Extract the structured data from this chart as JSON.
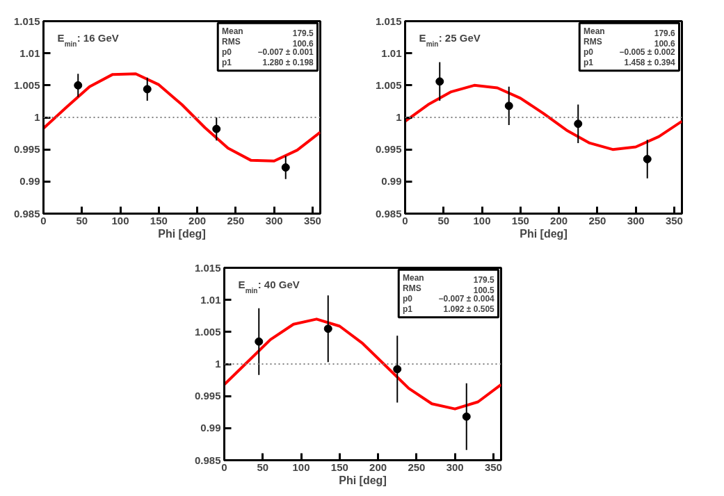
{
  "chart_data": [
    {
      "type": "scatter",
      "xlabel": "Phi [deg]",
      "xlim": [
        0,
        360
      ],
      "ylim": [
        0.985,
        1.015
      ],
      "xticks": [
        0,
        50,
        100,
        150,
        200,
        250,
        300,
        350
      ],
      "yticks": [
        0.985,
        0.99,
        0.995,
        1,
        1.005,
        1.01,
        1.015
      ],
      "grid": false,
      "annotations": [
        "E$_{min}$: 16 GeV",
        "Mean 179.5",
        "RMS 100.6",
        "p0 −0.007 ± 0.001",
        "p1 1.280 ± 0.198"
      ],
      "ref_lines": [
        {
          "axis": "y",
          "value": 1,
          "color": "#808080",
          "line_style": "dotted"
        }
      ],
      "series": [
        {
          "type": "line",
          "color": "#ff0000",
          "x": [
            0,
            30,
            60,
            90,
            120,
            150,
            180,
            210,
            240,
            270,
            300,
            330,
            360
          ],
          "values": [
            0.9983,
            1.0016,
            1.0048,
            1.0067,
            1.0068,
            1.0051,
            1.002,
            0.9984,
            0.9952,
            0.9933,
            0.9932,
            0.9949,
            0.9977
          ]
        },
        {
          "marker": "circle",
          "color": "#000000",
          "x": [
            45,
            135,
            225,
            315
          ],
          "values": [
            1.005,
            1.0044,
            0.9982,
            0.9922
          ],
          "errors": [
            0.0018,
            0.0018,
            0.0018,
            0.0018
          ]
        }
      ]
    },
    {
      "type": "scatter",
      "xlabel": "Phi [deg]",
      "xlim": [
        0,
        360
      ],
      "ylim": [
        0.985,
        1.015
      ],
      "xticks": [
        0,
        50,
        100,
        150,
        200,
        250,
        300,
        350
      ],
      "yticks": [
        0.985,
        0.99,
        0.995,
        1,
        1.005,
        1.01,
        1.015
      ],
      "grid": false,
      "annotations": [
        "E$_{min}$: 25 GeV",
        "Mean 179.6",
        "RMS 100.6",
        "p0 −0.005 ± 0.002",
        "p1 1.458 ± 0.394"
      ],
      "ref_lines": [
        {
          "axis": "y",
          "value": 1,
          "color": "#808080",
          "line_style": "dotted"
        }
      ],
      "series": [
        {
          "type": "line",
          "color": "#ff0000",
          "x": [
            0,
            30,
            60,
            90,
            120,
            150,
            180,
            210,
            240,
            270,
            300,
            330,
            360
          ],
          "values": [
            0.9994,
            1.002,
            1.004,
            1.005,
            1.0046,
            1.003,
            1.0006,
            0.998,
            0.996,
            0.995,
            0.9954,
            0.997,
            0.9994
          ]
        },
        {
          "marker": "circle",
          "color": "#000000",
          "x": [
            45,
            135,
            225,
            315
          ],
          "values": [
            1.0056,
            1.0018,
            0.999,
            0.9935
          ],
          "errors": [
            0.003,
            0.003,
            0.003,
            0.003
          ]
        }
      ]
    },
    {
      "type": "scatter",
      "xlabel": "Phi [deg]",
      "xlim": [
        0,
        360
      ],
      "ylim": [
        0.985,
        1.015
      ],
      "xticks": [
        0,
        50,
        100,
        150,
        200,
        250,
        300,
        350
      ],
      "yticks": [
        0.985,
        0.99,
        0.995,
        1,
        1.005,
        1.01,
        1.015
      ],
      "grid": false,
      "annotations": [
        "E$_{min}$: 40 GeV",
        "Mean 179.5",
        "RMS 100.5",
        "p0 −0.007 ± 0.004",
        "p1 1.092 ± 0.505"
      ],
      "ref_lines": [
        {
          "axis": "y",
          "value": 1,
          "color": "#808080",
          "line_style": "dotted"
        }
      ],
      "series": [
        {
          "type": "line",
          "color": "#ff0000",
          "x": [
            0,
            30,
            60,
            90,
            120,
            150,
            180,
            210,
            240,
            270,
            300,
            330,
            360
          ],
          "values": [
            0.9968,
            1.0003,
            1.0038,
            1.0062,
            1.007,
            1.0059,
            1.0032,
            0.9997,
            0.9962,
            0.9938,
            0.993,
            0.9941,
            0.9968
          ]
        },
        {
          "marker": "circle",
          "color": "#000000",
          "x": [
            45,
            135,
            225,
            315
          ],
          "values": [
            1.0035,
            1.0055,
            0.9992,
            0.9918
          ],
          "errors": [
            0.0052,
            0.0052,
            0.0052,
            0.0052
          ]
        }
      ]
    }
  ]
}
